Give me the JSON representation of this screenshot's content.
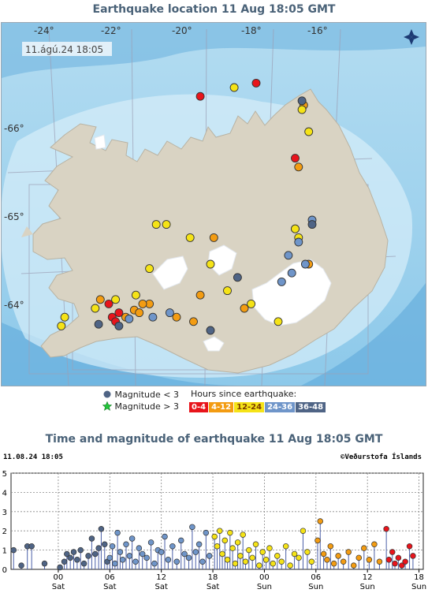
{
  "map": {
    "title": "Earthquake location   11 Aug 18:05 GMT",
    "stamp": "11.ágú.24  18:05",
    "lon_labels": [
      "-24°",
      "-22°",
      "-20°",
      "-18°",
      "-16°"
    ],
    "lat_labels": [
      "-66°",
      "-65°",
      "-64°"
    ],
    "icon": "compass-rose-icon"
  },
  "legend": {
    "mag_small": "Magnitude < 3",
    "mag_large": "Magnitude > 3",
    "hours_title": "Hours since earthquake:",
    "bins": [
      {
        "label": "0-4",
        "color": "#e8141b"
      },
      {
        "label": "4-12",
        "color": "#f39c12"
      },
      {
        "label": "12-24",
        "color": "#f5e317"
      },
      {
        "label": "24-36",
        "color": "#6f95c9"
      },
      {
        "label": "36-48",
        "color": "#4f6485"
      }
    ]
  },
  "plot": {
    "title": "Time and magnitude of earthquake   11 Aug 18:05 GMT",
    "left_stamp": "11.08.24 18:05",
    "right_stamp": "©Veðurstofa Íslands"
  },
  "chart_data": [
    {
      "type": "scatter",
      "title": "Earthquake location   11 Aug 18:05 GMT",
      "xlabel": "",
      "ylabel": "",
      "x_ticks": [
        "-24°",
        "-22°",
        "-20°",
        "-18°",
        "-16°"
      ],
      "y_ticks": [
        "-66°",
        "-65°",
        "-64°"
      ],
      "series": [
        {
          "name": "0-4",
          "color": "#e8141b",
          "points": [
            [
              -17.85,
              66.55
            ],
            [
              -19.5,
              66.4
            ],
            [
              -16.7,
              65.7
            ],
            [
              -16.7,
              64.9
            ],
            [
              -22.2,
              64.05
            ],
            [
              -22.1,
              63.9
            ],
            [
              -21.9,
              63.95
            ],
            [
              -22.0,
              63.85
            ]
          ]
        },
        {
          "name": "4-12",
          "color": "#f39c12",
          "points": [
            [
              -16.45,
              66.3
            ],
            [
              -16.6,
              65.6
            ],
            [
              -21.7,
              63.9
            ],
            [
              -21.45,
              63.98
            ],
            [
              -21.3,
              63.95
            ],
            [
              -21.0,
              64.05
            ],
            [
              -20.2,
              63.9
            ],
            [
              -19.7,
              63.85
            ],
            [
              -19.1,
              64.8
            ],
            [
              -18.2,
              64.0
            ],
            [
              -16.3,
              64.5
            ],
            [
              -22.45,
              64.1
            ],
            [
              -19.5,
              64.15
            ],
            [
              -21.2,
              64.05
            ]
          ]
        },
        {
          "name": "12-24",
          "color": "#f5e317",
          "points": [
            [
              -18.5,
              66.5
            ],
            [
              -16.3,
              66.0
            ],
            [
              -16.5,
              66.25
            ],
            [
              -20.5,
              64.95
            ],
            [
              -19.8,
              64.8
            ],
            [
              -19.2,
              64.5
            ],
            [
              -18.7,
              64.2
            ],
            [
              -18.0,
              64.05
            ],
            [
              -17.2,
              63.85
            ],
            [
              -16.7,
              64.9
            ],
            [
              -20.8,
              64.95
            ],
            [
              -21.0,
              64.45
            ],
            [
              -21.4,
              64.15
            ],
            [
              -22.6,
              64.0
            ],
            [
              -23.5,
              63.9
            ],
            [
              -23.6,
              63.8
            ],
            [
              -16.6,
              64.8
            ],
            [
              -22.0,
              64.1
            ]
          ]
        },
        {
          "name": "24-36",
          "color": "#6f95c9",
          "points": [
            [
              -16.2,
              65.0
            ],
            [
              -16.6,
              64.75
            ],
            [
              -16.9,
              64.6
            ],
            [
              -16.4,
              64.5
            ],
            [
              -16.8,
              64.4
            ],
            [
              -17.1,
              64.3
            ],
            [
              -20.9,
              63.9
            ],
            [
              -20.4,
              63.95
            ],
            [
              -21.6,
              63.88
            ]
          ]
        },
        {
          "name": "36-48",
          "color": "#4f6485",
          "points": [
            [
              -16.5,
              66.35
            ],
            [
              -16.2,
              64.95
            ],
            [
              -22.5,
              63.82
            ],
            [
              -21.9,
              63.8
            ],
            [
              -19.2,
              63.75
            ],
            [
              -18.4,
              64.35
            ]
          ]
        }
      ]
    },
    {
      "type": "scatter",
      "title": "Time and magnitude of earthquake   11 Aug 18:05 GMT",
      "xlabel": "",
      "ylabel": "",
      "ylim": [
        0,
        5
      ],
      "y_ticks": [
        "0",
        "1",
        "2",
        "3",
        "4",
        "5"
      ],
      "x_ticks": [
        {
          "hour": "00",
          "day": "Sat"
        },
        {
          "hour": "06",
          "day": "Sat"
        },
        {
          "hour": "12",
          "day": "Sat"
        },
        {
          "hour": "18",
          "day": "Sat"
        },
        {
          "hour": "00",
          "day": "Sun"
        },
        {
          "hour": "06",
          "day": "Sun"
        },
        {
          "hour": "12",
          "day": "Sun"
        },
        {
          "hour": "18",
          "day": "Sun"
        }
      ],
      "x_unit": "hours since 10 Aug 00:00",
      "xlim": [
        -5.5,
        42.5
      ],
      "series": [
        {
          "name": "36-48",
          "color": "#4f6485",
          "points": [
            [
              -5.2,
              1.0
            ],
            [
              -4.3,
              0.2
            ],
            [
              -3.6,
              1.2
            ],
            [
              -3.1,
              1.2
            ],
            [
              -1.6,
              0.3
            ],
            [
              0.2,
              0.1
            ],
            [
              0.7,
              0.4
            ],
            [
              1.0,
              0.8
            ],
            [
              1.4,
              0.6
            ],
            [
              1.8,
              0.9
            ],
            [
              2.2,
              0.5
            ],
            [
              2.6,
              1.0
            ],
            [
              3.0,
              0.3
            ],
            [
              3.5,
              0.7
            ],
            [
              3.9,
              1.6
            ],
            [
              4.3,
              0.8
            ],
            [
              4.7,
              1.1
            ],
            [
              5.0,
              2.1
            ],
            [
              5.4,
              1.3
            ],
            [
              5.7,
              0.4
            ]
          ]
        },
        {
          "name": "24-36",
          "color": "#6f95c9",
          "points": [
            [
              6.0,
              0.6
            ],
            [
              6.3,
              1.2
            ],
            [
              6.6,
              0.3
            ],
            [
              6.9,
              1.9
            ],
            [
              7.2,
              0.9
            ],
            [
              7.5,
              0.5
            ],
            [
              7.9,
              1.3
            ],
            [
              8.3,
              0.7
            ],
            [
              8.6,
              1.6
            ],
            [
              9.0,
              0.4
            ],
            [
              9.4,
              1.1
            ],
            [
              9.8,
              0.8
            ],
            [
              10.3,
              0.6
            ],
            [
              10.8,
              1.4
            ],
            [
              11.2,
              0.3
            ],
            [
              11.6,
              1.0
            ],
            [
              12.0,
              0.9
            ],
            [
              12.4,
              1.7
            ],
            [
              12.8,
              0.5
            ],
            [
              13.3,
              1.2
            ],
            [
              13.8,
              0.4
            ],
            [
              14.3,
              1.5
            ],
            [
              14.7,
              0.8
            ],
            [
              15.2,
              0.6
            ],
            [
              15.6,
              2.2
            ],
            [
              16.0,
              0.9
            ],
            [
              16.4,
              1.3
            ],
            [
              16.8,
              0.4
            ],
            [
              17.2,
              1.9
            ],
            [
              17.6,
              0.7
            ]
          ]
        },
        {
          "name": "12-24",
          "color": "#f5e317",
          "points": [
            [
              18.2,
              1.7
            ],
            [
              18.5,
              1.2
            ],
            [
              18.8,
              2.0
            ],
            [
              19.1,
              0.8
            ],
            [
              19.4,
              1.5
            ],
            [
              19.7,
              0.5
            ],
            [
              20.0,
              1.9
            ],
            [
              20.3,
              1.1
            ],
            [
              20.6,
              0.3
            ],
            [
              20.9,
              1.4
            ],
            [
              21.2,
              0.7
            ],
            [
              21.5,
              1.8
            ],
            [
              21.8,
              0.4
            ],
            [
              22.2,
              1.0
            ],
            [
              22.6,
              0.6
            ],
            [
              23.0,
              1.3
            ],
            [
              23.4,
              0.2
            ],
            [
              23.8,
              0.9
            ],
            [
              24.2,
              0.5
            ],
            [
              24.6,
              1.1
            ],
            [
              25.0,
              0.3
            ],
            [
              25.5,
              0.7
            ],
            [
              26.0,
              0.4
            ],
            [
              26.5,
              1.2
            ],
            [
              27.0,
              0.2
            ],
            [
              27.5,
              0.8
            ],
            [
              28.0,
              0.6
            ],
            [
              28.5,
              2.0
            ],
            [
              29.0,
              0.9
            ],
            [
              29.5,
              0.4
            ]
          ]
        },
        {
          "name": "4-12",
          "color": "#f39c12",
          "points": [
            [
              30.2,
              1.5
            ],
            [
              30.5,
              2.5
            ],
            [
              30.9,
              0.8
            ],
            [
              31.3,
              0.5
            ],
            [
              31.7,
              1.2
            ],
            [
              32.1,
              0.3
            ],
            [
              32.6,
              0.7
            ],
            [
              33.2,
              0.4
            ],
            [
              33.8,
              0.9
            ],
            [
              34.4,
              0.2
            ],
            [
              35.0,
              0.6
            ],
            [
              35.6,
              1.1
            ],
            [
              36.2,
              0.5
            ],
            [
              36.8,
              1.3
            ],
            [
              37.4,
              0.4
            ]
          ]
        },
        {
          "name": "0-4",
          "color": "#e8141b",
          "points": [
            [
              38.2,
              2.1
            ],
            [
              38.5,
              0.5
            ],
            [
              38.9,
              0.9
            ],
            [
              39.2,
              0.3
            ],
            [
              39.6,
              0.6
            ],
            [
              40.0,
              0.2
            ],
            [
              40.4,
              0.4
            ],
            [
              40.9,
              1.2
            ],
            [
              41.3,
              0.7
            ]
          ]
        }
      ]
    }
  ]
}
